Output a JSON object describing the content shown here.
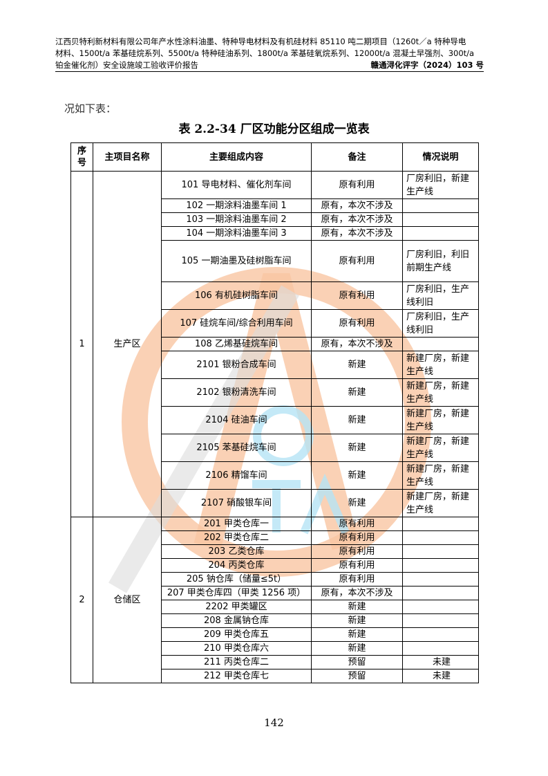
{
  "header": {
    "lines": [
      "江西贝特利新材料有限公司年产水性涂料油墨、特种导电材料及有机硅材料 85110 吨二期项目（1260t／a 特种导电",
      "材料、1500t/a 苯基硅烷系列、5500t/a 特种硅油系列、1800t/a 苯基硅氧烷系列、12000t/a 混凝土早强剂、300t/a",
      "铂金催化剂）安全设施竣工验收评价报告"
    ],
    "doc_number": "赣通浔化评字（2024）103 号"
  },
  "intro": "况如下表：",
  "table_title": "表 2.2-34 厂区功能分区组成一览表",
  "columns": [
    "序号",
    "主项目名称",
    "主要组成内容",
    "备注",
    "情况说明"
  ],
  "groups": [
    {
      "no": "1",
      "name": "生产区",
      "rows": [
        {
          "content": "101 导电材料、催化剂车间",
          "remark": "原有利用",
          "note": "厂房利旧，新建生产线",
          "h": 41
        },
        {
          "content": "102 一期涂料油墨车间 1",
          "remark": "原有，本次不涉及",
          "note": "",
          "h": 21
        },
        {
          "content": "103 一期涂料油墨车间 2",
          "remark": "原有，本次不涉及",
          "note": "",
          "h": 21
        },
        {
          "content": "104 一期涂料油墨车间 3",
          "remark": "原有，本次不涉及",
          "note": "",
          "h": 21
        },
        {
          "content": "105 一期油墨及硅树脂车间",
          "remark": "原有利用",
          "note": "厂房利旧，利旧前期生产线",
          "h": 61
        },
        {
          "content": "106 有机硅树脂车间",
          "remark": "原有利用",
          "note": "厂房利旧，生产线利旧",
          "h": 41
        },
        {
          "content": "107 硅烷车间/综合利用车间",
          "remark": "原有利用",
          "note": "厂房利旧，生产线利旧",
          "h": 41
        },
        {
          "content": "108 乙烯基硅烷车间",
          "remark": "原有，本次不涉及",
          "note": "",
          "h": 21
        },
        {
          "content": "2101 银粉合成车间",
          "remark": "新建",
          "note": "新建厂房，新建生产线",
          "h": 41
        },
        {
          "content": "2102 银粉清洗车间",
          "remark": "新建",
          "note": "新建厂房，新建生产线",
          "h": 41
        },
        {
          "content": "2104 硅油车间",
          "remark": "新建",
          "note": "新建厂房，新建生产线",
          "h": 41
        },
        {
          "content": "2105 苯基硅烷车间",
          "remark": "新建",
          "note": "新建厂房，新建生产线",
          "h": 41
        },
        {
          "content": "2106 精馏车间",
          "remark": "新建",
          "note": "新建厂房，新建生产线",
          "h": 41
        },
        {
          "content": "2107 硝酸银车间",
          "remark": "新建",
          "note": "新建厂房，新建生产线",
          "h": 41
        }
      ]
    },
    {
      "no": "2",
      "name": "仓储区",
      "rows": [
        {
          "content": "201 甲类仓库一",
          "remark": "原有利用",
          "note": "",
          "h": 21
        },
        {
          "content": "202 甲类仓库二",
          "remark": "原有利用",
          "note": "",
          "h": 21
        },
        {
          "content": "203 乙类仓库",
          "remark": "原有利用",
          "note": "",
          "h": 21
        },
        {
          "content": "204 丙类仓库",
          "remark": "原有利用",
          "note": "",
          "h": 21
        },
        {
          "content": "205 钠仓库（储量≤5t）",
          "remark": "原有利用",
          "note": "",
          "h": 21
        },
        {
          "content": "207 甲类仓库四（甲类 1256 项）",
          "remark": "原有，本次不涉及",
          "note": "",
          "h": 21
        },
        {
          "content": "2202 甲类罐区",
          "remark": "新建",
          "note": "",
          "h": 21
        },
        {
          "content": "208 金属钠仓库",
          "remark": "新建",
          "note": "",
          "h": 21
        },
        {
          "content": "209 甲类仓库五",
          "remark": "新建",
          "note": "",
          "h": 21
        },
        {
          "content": "210 甲类仓库六",
          "remark": "新建",
          "note": "",
          "h": 21
        },
        {
          "content": "211 丙类仓库二",
          "remark": "预留",
          "note": "未建",
          "h": 21
        },
        {
          "content": "212 甲类仓库七",
          "remark": "预留",
          "note": "未建",
          "h": 21
        }
      ]
    }
  ],
  "page_number": "142",
  "watermark": {
    "text": "江西建…评价",
    "letters": "QTA",
    "colors": {
      "orange": "#f7b48a",
      "blue": "#a6dcf2",
      "gray": "#d0d0d0"
    }
  }
}
